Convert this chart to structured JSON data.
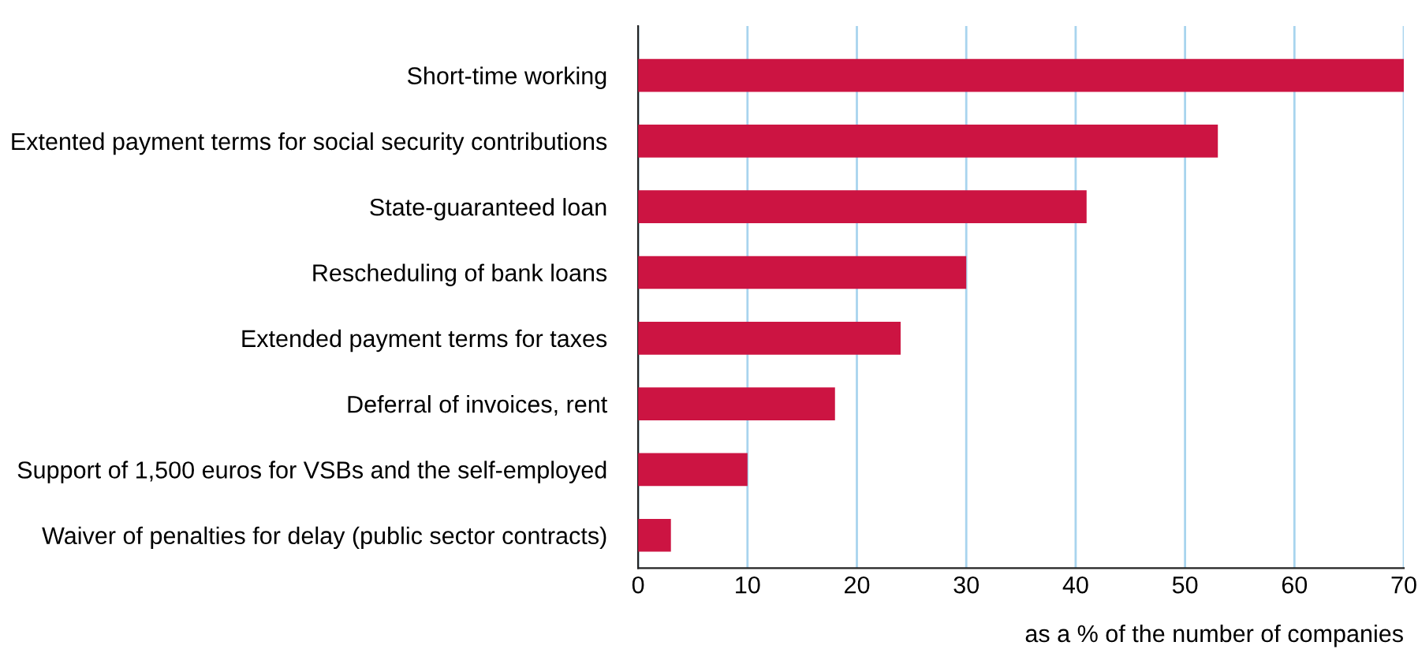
{
  "chart_data": {
    "type": "bar",
    "orientation": "horizontal",
    "categories": [
      "Short-time working",
      "Extented payment terms for social security contributions",
      "State-guaranteed loan",
      "Rescheduling of bank loans",
      "Extended payment terms for taxes",
      "Deferral of invoices, rent",
      "Support of 1,500 euros for VSBs and the self-employed",
      "Waiver of penalties for delay (public sector contracts)"
    ],
    "values": [
      70,
      53,
      41,
      30,
      24,
      18,
      10,
      3
    ],
    "color": "#cc1442",
    "xlim": [
      0,
      70
    ],
    "xticks": [
      0,
      10,
      20,
      30,
      40,
      50,
      60,
      70
    ],
    "xlabel": "as a % of the number of companies",
    "grid": "x"
  }
}
